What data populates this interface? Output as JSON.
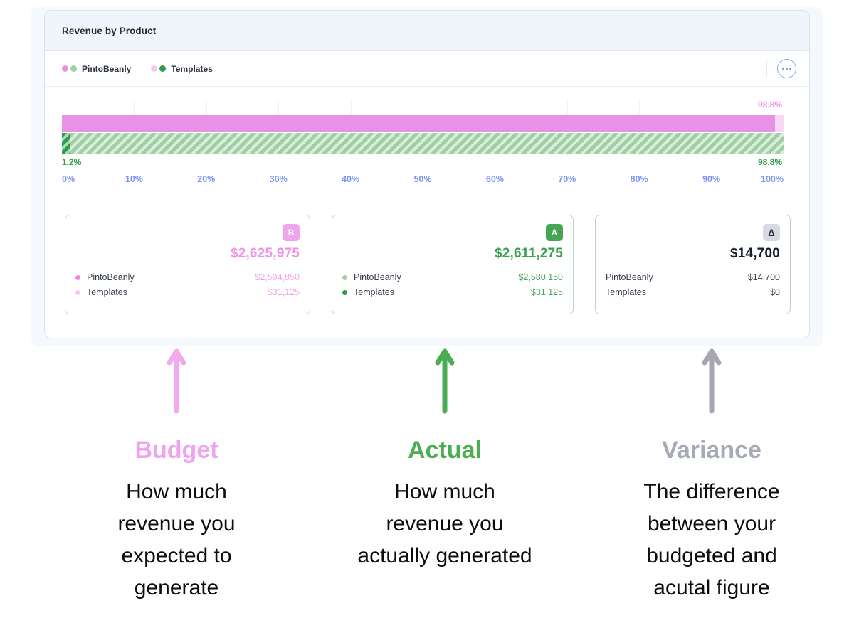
{
  "widget": {
    "title": "Revenue by Product",
    "legend": [
      {
        "label": "PintoBeanly",
        "budget_color": "#e892e5",
        "actual_color": "#a0cfa4"
      },
      {
        "label": "Templates",
        "budget_color": "#f5c9f2",
        "actual_color": "#2f9c4b"
      }
    ],
    "menu": {
      "icon": "ellipsis-icon"
    }
  },
  "chart_data": {
    "type": "bar",
    "orientation": "horizontal",
    "stacked": true,
    "x_ticks": [
      "0%",
      "10%",
      "20%",
      "30%",
      "40%",
      "50%",
      "60%",
      "70%",
      "80%",
      "90%",
      "100%"
    ],
    "xlim": [
      0,
      100
    ],
    "grid": "vertical",
    "bars": [
      {
        "name": "Budget",
        "pattern": "solid",
        "segments": [
          {
            "product": "PintoBeanly",
            "pct": 98.8,
            "color": "#e892e5"
          },
          {
            "product": "Templates",
            "pct": 1.2,
            "color": "#f7d8f4"
          }
        ],
        "end_label": "98.8%",
        "label_color": "#ef92e5"
      },
      {
        "name": "Actual",
        "pattern": "hatched",
        "segments": [
          {
            "product": "Templates",
            "pct": 1.2,
            "color": "#2f9c4b"
          },
          {
            "product": "PintoBeanly",
            "pct": 98.8,
            "color": "#a0cfa4"
          }
        ],
        "start_label": "1.2%",
        "end_label": "98.8%",
        "label_color": "#2f9c4b"
      }
    ]
  },
  "cards": [
    {
      "name": "Budget",
      "badge": "B",
      "accent": "#efa5eb",
      "total": "$2,625,975",
      "rows": [
        {
          "label": "PintoBeanly",
          "dot": "#e88be4",
          "value": "$2,594,850"
        },
        {
          "label": "Templates",
          "dot": "#f5c9f2",
          "value": "$31,125"
        }
      ]
    },
    {
      "name": "Actual",
      "badge": "A",
      "accent": "#46a455",
      "total": "$2,611,275",
      "rows": [
        {
          "label": "PintoBeanly",
          "dot": "#a4d0a6",
          "value": "$2,580,150"
        },
        {
          "label": "Templates",
          "dot": "#2f9c4b",
          "value": "$31,125"
        }
      ]
    },
    {
      "name": "Variance",
      "badge": "Δ",
      "accent": "#d6d9de",
      "total": "$14,700",
      "rows": [
        {
          "label": "PintoBeanly",
          "value": "$14,700"
        },
        {
          "label": "Templates",
          "value": "$0"
        }
      ]
    }
  ],
  "annotations": [
    {
      "heading": "Budget",
      "color": "#f0a3ee",
      "arrow": "up-arrow",
      "description": "How much revenue you expected to generate"
    },
    {
      "heading": "Actual",
      "color": "#4cae52",
      "arrow": "up-arrow",
      "description": "How much revenue you actually generated"
    },
    {
      "heading": "Variance",
      "color": "#a6abb8",
      "arrow": "up-arrow",
      "description": "The difference between your budgeted and acutal figure"
    }
  ]
}
